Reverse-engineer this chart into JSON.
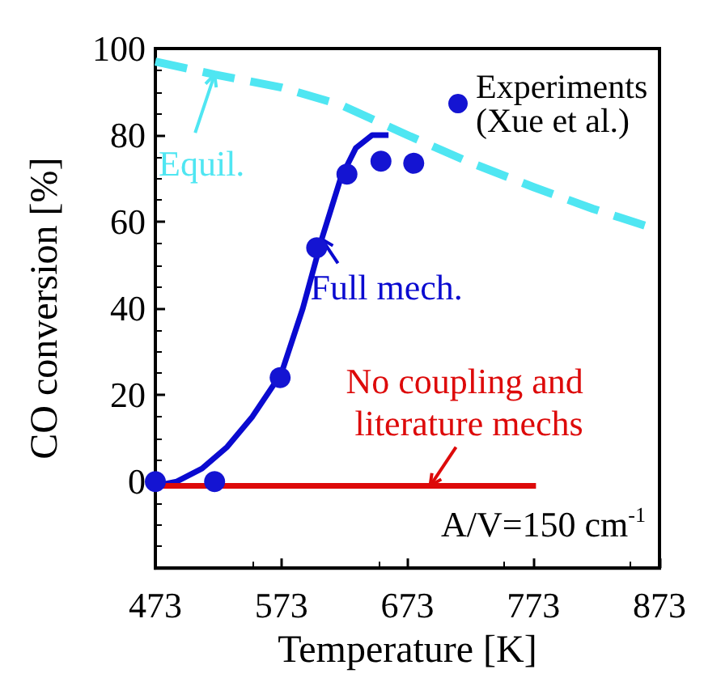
{
  "chart_data": {
    "type": "line",
    "xlabel": "Temperature [K]",
    "ylabel": "CO conversion [%]",
    "xlim": [
      473,
      873
    ],
    "xticks": [
      473,
      573,
      673,
      773,
      873
    ],
    "ylim": [
      -20,
      100
    ],
    "yticks": [
      {
        "value": -20,
        "label": null
      },
      0,
      20,
      40,
      60,
      80,
      100
    ],
    "grid": false,
    "legend": "top right",
    "series": [
      {
        "color": "#4fe6f2",
        "line_style": "dashed",
        "marker": "none",
        "x": [
          473,
          520,
          573,
          620,
          673,
          720,
          773,
          820,
          873
        ],
        "values": [
          97,
          94,
          91,
          87,
          80,
          74,
          68,
          63,
          58
        ]
      },
      {
        "color": "#0a0ad0",
        "line_style": "solid",
        "marker": "none",
        "x": [
          473,
          490,
          510,
          530,
          550,
          573,
          590,
          605,
          620,
          632,
          645,
          658
        ],
        "values": [
          -1,
          0,
          3,
          8,
          15,
          25,
          40,
          56,
          70,
          77,
          80,
          80
        ]
      },
      {
        "color": "#dd0a0a",
        "line_style": "solid",
        "marker": "none",
        "x": [
          473,
          775
        ],
        "values": [
          -1,
          -1
        ]
      },
      {
        "type": "scatter",
        "name": "Experiments (Xue et al.)",
        "color": "#1414d2",
        "marker": "circle",
        "x": [
          473,
          520,
          572,
          601,
          625,
          652,
          678
        ],
        "values": [
          0,
          0,
          24,
          54,
          71,
          74,
          73.5
        ]
      }
    ],
    "annotations": [
      {
        "text": "Equil.",
        "x": 520,
        "y": 94
      },
      {
        "text": "Full mech.",
        "x": 605,
        "y": 56
      },
      {
        "text": "No coupling and literature mechs",
        "x": 691,
        "y": -1
      },
      "A/V=150 cm$^{-1}$"
    ]
  }
}
